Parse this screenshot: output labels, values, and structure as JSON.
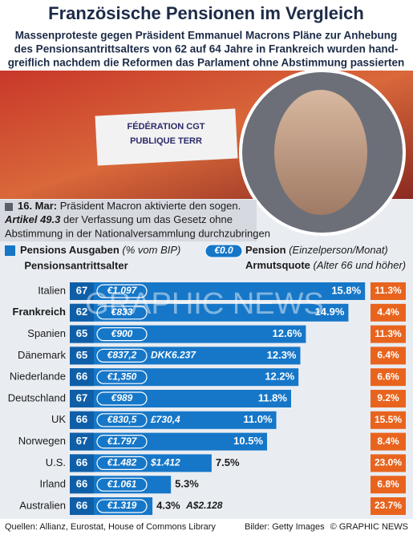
{
  "chart_data": {
    "type": "bar",
    "title": "Französische Pensionen im Vergleich",
    "subtitle": [
      "Massenproteste gegen Präsident Emmanuel Macrons Pläne zur Anhebung",
      "des Pensionsantrittsalters von 62 auf 64 Jahre in Frankreich wurden hand-",
      "greiflich nachdem die Reformen das Parlament ohne Abstimmung passierten"
    ],
    "photo_banner": [
      "FÉDÉRATION CGT",
      "PUBLIQUE TERR"
    ],
    "note": {
      "date": "16. Mar:",
      "line1": " Präsident Macron aktivierte den sogen.",
      "bold": "Artikel 49.3",
      "line2": " der Verfassung um das Gesetz ohne",
      "line3": "Abstimmung in der Nationalversammlung durchzubringen"
    },
    "legend": {
      "bar_name": "Pensions Ausgaben",
      "bar_unit": "(% vom BIP)",
      "pill": "€0.0",
      "pill_name": "Pension",
      "pill_unit": "(Einzelperson/Monat)"
    },
    "age_header": "Pensionsantrittsalter",
    "poverty_header": "Armutsquote",
    "poverty_unit": "(Alter 66 und höher)",
    "categories": [
      "Italien",
      "Frankreich",
      "Spanien",
      "Dänemark",
      "Niederlande",
      "Deutschland",
      "UK",
      "Norwegen",
      "U.S.",
      "Irland",
      "Australien"
    ],
    "highlight": "Frankreich",
    "color": "#1677c8",
    "values": [
      15.8,
      14.9,
      12.6,
      12.3,
      12.2,
      11.8,
      11.0,
      10.5,
      7.5,
      5.3,
      4.3
    ],
    "value_labels": [
      "15.8%",
      "14.9%",
      "12.6%",
      "12.3%",
      "12.2%",
      "11.8%",
      "11.0%",
      "10.5%",
      "7.5%",
      "5.3%",
      "4.3%"
    ],
    "retirement_age": [
      67,
      62,
      65,
      65,
      66,
      67,
      66,
      67,
      66,
      66,
      66
    ],
    "pension_labels": [
      "€1.097",
      "€833",
      "€900",
      "€837,2",
      "€1,350",
      "€989",
      "€830,5",
      "€1.797",
      "€1.482",
      "€1.061",
      "€1.319"
    ],
    "local_pension_labels": [
      null,
      null,
      null,
      "DKK6.237",
      null,
      null,
      "£730,4",
      null,
      "$1.412",
      null,
      "A$2.128"
    ],
    "poverty_color": "#e8641e",
    "poverty_rate": [
      11.3,
      4.4,
      11.3,
      6.4,
      6.6,
      9.2,
      15.5,
      8.4,
      23.0,
      6.8,
      23.7
    ],
    "poverty_labels": [
      "11.3%",
      "4.4%",
      "11.3%",
      "6.4%",
      "6.6%",
      "9.2%",
      "15.5%",
      "8.4%",
      "23.0%",
      "6.8%",
      "23.7%"
    ],
    "watermark": "GRAPHIC NEWS",
    "sources": "Quellen: Allianz, Eurostat, House of Commons Library",
    "credit": "Bilder: Getty Images",
    "copyright": "© GRAPHIC NEWS"
  }
}
